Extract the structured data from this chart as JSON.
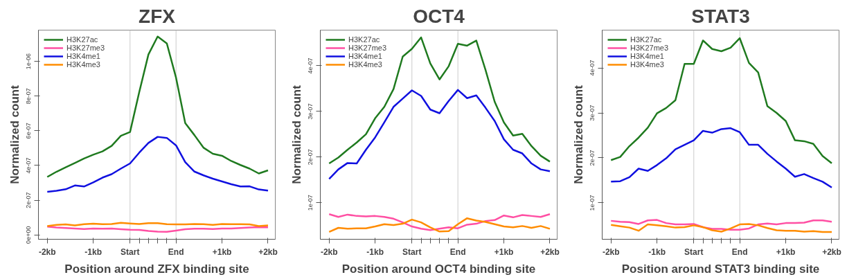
{
  "chart_data": [
    {
      "type": "line",
      "title": "ZFX",
      "xlabel": "Position around ZFX binding site",
      "ylabel": "Normalized count",
      "legend": "top left",
      "grid": false,
      "line_style": "solid",
      "categories": [
        "-2kb",
        null,
        null,
        null,
        null,
        "-1kb",
        null,
        null,
        null,
        "Start",
        null,
        null,
        null,
        null,
        "End",
        null,
        null,
        null,
        null,
        "+1kb",
        null,
        null,
        null,
        null,
        "+2kb"
      ],
      "ylim": [
        -2.5e-08,
        1.18e-06
      ],
      "yticks": [
        {
          "value": 0,
          "label": "0e+00"
        },
        {
          "value": 2e-07,
          "label": "2e-07"
        },
        {
          "value": 4e-07,
          "label": "4e-07"
        },
        {
          "value": 6e-07,
          "label": "6e-07"
        },
        {
          "value": 8e-07,
          "label": "8e-07"
        },
        {
          "value": 1e-06,
          "label": "1e-06"
        }
      ],
      "ref_lines": [
        {
          "axis": "x",
          "value": "Start",
          "color": "#cccccc"
        },
        {
          "axis": "x",
          "value": "End",
          "color": "#cccccc"
        }
      ],
      "series": [
        {
          "name": "H3K27ac",
          "color": "#1f7a1f",
          "values": [
            3.34e-07,
            3.64e-07,
            3.89e-07,
            4.14e-07,
            4.4e-07,
            4.62e-07,
            4.81e-07,
            5.13e-07,
            5.71e-07,
            5.93e-07,
            8.23e-07,
            1.04e-06,
            1.143e-06,
            1.103e-06,
            9.06e-07,
            6.44e-07,
            5.75e-07,
            5.02e-07,
            4.68e-07,
            4.56e-07,
            4.26e-07,
            4.03e-07,
            3.82e-07,
            3.54e-07,
            3.72e-07
          ]
        },
        {
          "name": "H3K27me3",
          "color": "#ff4fa3",
          "values": [
            4.8e-08,
            4.3e-08,
            4e-08,
            3.7e-08,
            3.4e-08,
            3.7e-08,
            3.6e-08,
            3.7e-08,
            3.3e-08,
            3e-08,
            2.9e-08,
            2.3e-08,
            1.9e-08,
            1.8e-08,
            2.5e-08,
            3.3e-08,
            3.6e-08,
            3.6e-08,
            3.4e-08,
            3.7e-08,
            3.7e-08,
            4e-08,
            4.3e-08,
            4.5e-08,
            4.4e-08
          ]
        },
        {
          "name": "H3K4me1",
          "color": "#1010e0",
          "values": [
            2.48e-07,
            2.54e-07,
            2.63e-07,
            2.85e-07,
            2.79e-07,
            3.03e-07,
            3.3e-07,
            3.5e-07,
            3.82e-07,
            4.12e-07,
            4.74e-07,
            5.3e-07,
            5.65e-07,
            5.59e-07,
            5.16e-07,
            4.19e-07,
            3.65e-07,
            3.43e-07,
            3.24e-07,
            3.08e-07,
            2.92e-07,
            2.79e-07,
            2.8e-07,
            2.62e-07,
            2.55e-07
          ]
        },
        {
          "name": "H3K4me3",
          "color": "#ff8c00",
          "values": [
            5.1e-08,
            5.8e-08,
            6.1e-08,
            5.5e-08,
            6.2e-08,
            6.5e-08,
            6.2e-08,
            6.3e-08,
            7e-08,
            6.6e-08,
            6.3e-08,
            6.8e-08,
            6.8e-08,
            6.2e-08,
            6.1e-08,
            6.1e-08,
            6.3e-08,
            6.2e-08,
            5.8e-08,
            6.3e-08,
            6.2e-08,
            6.2e-08,
            6.1e-08,
            5.1e-08,
            5.5e-08
          ]
        }
      ]
    },
    {
      "type": "line",
      "title": "OCT4",
      "xlabel": "Position around OCT4 binding site",
      "ylabel": "Normalized count",
      "legend": "top left",
      "grid": false,
      "line_style": "solid",
      "categories": [
        "-2kb",
        null,
        null,
        null,
        null,
        "-1kb",
        null,
        null,
        null,
        "Start",
        null,
        null,
        null,
        null,
        "End",
        null,
        null,
        null,
        null,
        "+1kb",
        null,
        null,
        null,
        null,
        "+2kb"
      ],
      "ylim": [
        2e-08,
        4.78e-07
      ],
      "yticks": [
        {
          "value": 1e-07,
          "label": "1e-07"
        },
        {
          "value": 2e-07,
          "label": "2e-07"
        },
        {
          "value": 3e-07,
          "label": "3e-07"
        },
        {
          "value": 4e-07,
          "label": "4e-07"
        }
      ],
      "ref_lines": [
        {
          "axis": "x",
          "value": "Start",
          "color": "#cccccc"
        },
        {
          "axis": "x",
          "value": "End",
          "color": "#cccccc"
        }
      ],
      "series": [
        {
          "name": "H3K27ac",
          "color": "#1f7a1f",
          "values": [
            1.86e-07,
            1.99e-07,
            2.16e-07,
            2.32e-07,
            2.5e-07,
            2.85e-07,
            3.1e-07,
            3.49e-07,
            4.2e-07,
            4.37e-07,
            4.62e-07,
            4.05e-07,
            3.7e-07,
            3.99e-07,
            4.48e-07,
            4.44e-07,
            4.55e-07,
            3.91e-07,
            3.21e-07,
            2.76e-07,
            2.47e-07,
            2.51e-07,
            2.24e-07,
            2.03e-07,
            1.9e-07
          ]
        },
        {
          "name": "H3K27me3",
          "color": "#ff4fa3",
          "values": [
            7.5e-08,
            6.9e-08,
            7.4e-08,
            7.1e-08,
            7e-08,
            7.1e-08,
            6.9e-08,
            6.5e-08,
            5.7e-08,
            4.8e-08,
            4.3e-08,
            4e-08,
            4.3e-08,
            4.6e-08,
            4.4e-08,
            5.2e-08,
            5.4e-08,
            6e-08,
            6.2e-08,
            7.2e-08,
            6.8e-08,
            7.3e-08,
            7.1e-08,
            6.9e-08,
            7.5e-08
          ]
        },
        {
          "name": "H3K4me1",
          "color": "#1010e0",
          "values": [
            1.52e-07,
            1.73e-07,
            1.87e-07,
            1.86e-07,
            2.16e-07,
            2.43e-07,
            2.76e-07,
            3.1e-07,
            3.28e-07,
            3.46e-07,
            3.34e-07,
            3.04e-07,
            2.96e-07,
            3.23e-07,
            3.47e-07,
            3.29e-07,
            3.35e-07,
            3.08e-07,
            2.79e-07,
            2.39e-07,
            2.16e-07,
            2.08e-07,
            1.86e-07,
            1.73e-07,
            1.69e-07
          ]
        },
        {
          "name": "H3K4me3",
          "color": "#ff8c00",
          "values": [
            3.6e-08,
            4.5e-08,
            4.3e-08,
            4.4e-08,
            4.4e-08,
            4.8e-08,
            5.3e-08,
            5.1e-08,
            5.4e-08,
            6.3e-08,
            5.7e-08,
            4.6e-08,
            3.7e-08,
            3.8e-08,
            5.3e-08,
            6.6e-08,
            6.1e-08,
            5.8e-08,
            5.3e-08,
            4.8e-08,
            4.6e-08,
            4.9e-08,
            4.5e-08,
            4.9e-08,
            4.3e-08
          ]
        }
      ]
    },
    {
      "type": "line",
      "title": "STAT3",
      "xlabel": "Position around STAT3 binding site",
      "ylabel": "Normalized count",
      "legend": "top left",
      "grid": false,
      "line_style": "solid",
      "categories": [
        "-2kb",
        null,
        null,
        null,
        null,
        "-1kb",
        null,
        null,
        null,
        "Start",
        null,
        null,
        null,
        null,
        "End",
        null,
        null,
        null,
        null,
        "+1kb",
        null,
        null,
        null,
        null,
        "+2kb"
      ],
      "ylim": [
        1.9e-08,
        4.84e-07
      ],
      "yticks": [
        {
          "value": 1e-07,
          "label": "1e-07"
        },
        {
          "value": 2e-07,
          "label": "2e-07"
        },
        {
          "value": 3e-07,
          "label": "3e-07"
        },
        {
          "value": 4e-07,
          "label": "4e-07"
        }
      ],
      "ref_lines": [
        {
          "axis": "x",
          "value": "Start",
          "color": "#cccccc"
        },
        {
          "axis": "x",
          "value": "End",
          "color": "#cccccc"
        }
      ],
      "series": [
        {
          "name": "H3K27ac",
          "color": "#1f7a1f",
          "values": [
            1.95e-07,
            2.02e-07,
            2.26e-07,
            2.45e-07,
            2.67e-07,
            2.99e-07,
            3.11e-07,
            3.28e-07,
            4.09e-07,
            4.09e-07,
            4.61e-07,
            4.42e-07,
            4.37e-07,
            4.45e-07,
            4.66e-07,
            4.11e-07,
            3.9e-07,
            3.15e-07,
            3e-07,
            2.82e-07,
            2.39e-07,
            2.37e-07,
            2.31e-07,
            2.04e-07,
            1.88e-07
          ]
        },
        {
          "name": "H3K27me3",
          "color": "#ff4fa3",
          "values": [
            6e-08,
            5.8e-08,
            5.7e-08,
            5.3e-08,
            6.1e-08,
            6.2e-08,
            5.5e-08,
            5.2e-08,
            5.2e-08,
            5.3e-08,
            4.6e-08,
            4.2e-08,
            4.2e-08,
            4e-08,
            4e-08,
            4.3e-08,
            5.2e-08,
            5.4e-08,
            5.2e-08,
            5.5e-08,
            5.5e-08,
            5.6e-08,
            6.1e-08,
            6.1e-08,
            5.8e-08
          ]
        },
        {
          "name": "H3K4me1",
          "color": "#1010e0",
          "values": [
            1.47e-07,
            1.48e-07,
            1.57e-07,
            1.76e-07,
            1.71e-07,
            1.84e-07,
            1.99e-07,
            2.19e-07,
            2.29e-07,
            2.39e-07,
            2.6e-07,
            2.56e-07,
            2.64e-07,
            2.66e-07,
            2.57e-07,
            2.29e-07,
            2.29e-07,
            2.09e-07,
            1.92e-07,
            1.76e-07,
            1.58e-07,
            1.64e-07,
            1.55e-07,
            1.47e-07,
            1.34e-07
          ]
        },
        {
          "name": "H3K4me3",
          "color": "#ff8c00",
          "values": [
            5.1e-08,
            4.8e-08,
            4.5e-08,
            3.8e-08,
            5.2e-08,
            5e-08,
            4.8e-08,
            4.5e-08,
            4.6e-08,
            5e-08,
            4.6e-08,
            3.9e-08,
            3.6e-08,
            4.3e-08,
            5.2e-08,
            5.3e-08,
            5e-08,
            4.4e-08,
            3.9e-08,
            3.8e-08,
            3.8e-08,
            3.6e-08,
            3.7e-08,
            3.5e-08,
            3.5e-08
          ]
        }
      ]
    }
  ]
}
